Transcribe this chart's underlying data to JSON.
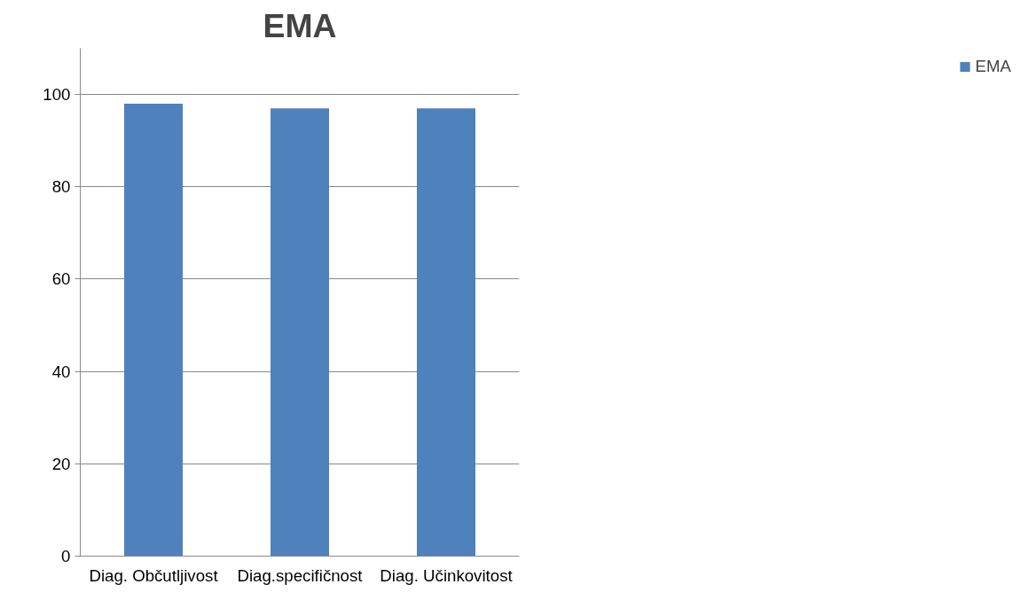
{
  "chart_data": {
    "type": "bar",
    "title": "EMA",
    "categories": [
      "Diag. Občutljivost",
      "Diag.specifičnost",
      "Diag. Učinkovitost"
    ],
    "series": [
      {
        "name": "EMA",
        "color": "#4f81bd",
        "values": [
          98,
          97,
          97
        ]
      }
    ],
    "ylim": [
      0,
      110
    ],
    "yticks": [
      0,
      20,
      40,
      60,
      80,
      100
    ],
    "grid": "y",
    "legend": "right"
  }
}
